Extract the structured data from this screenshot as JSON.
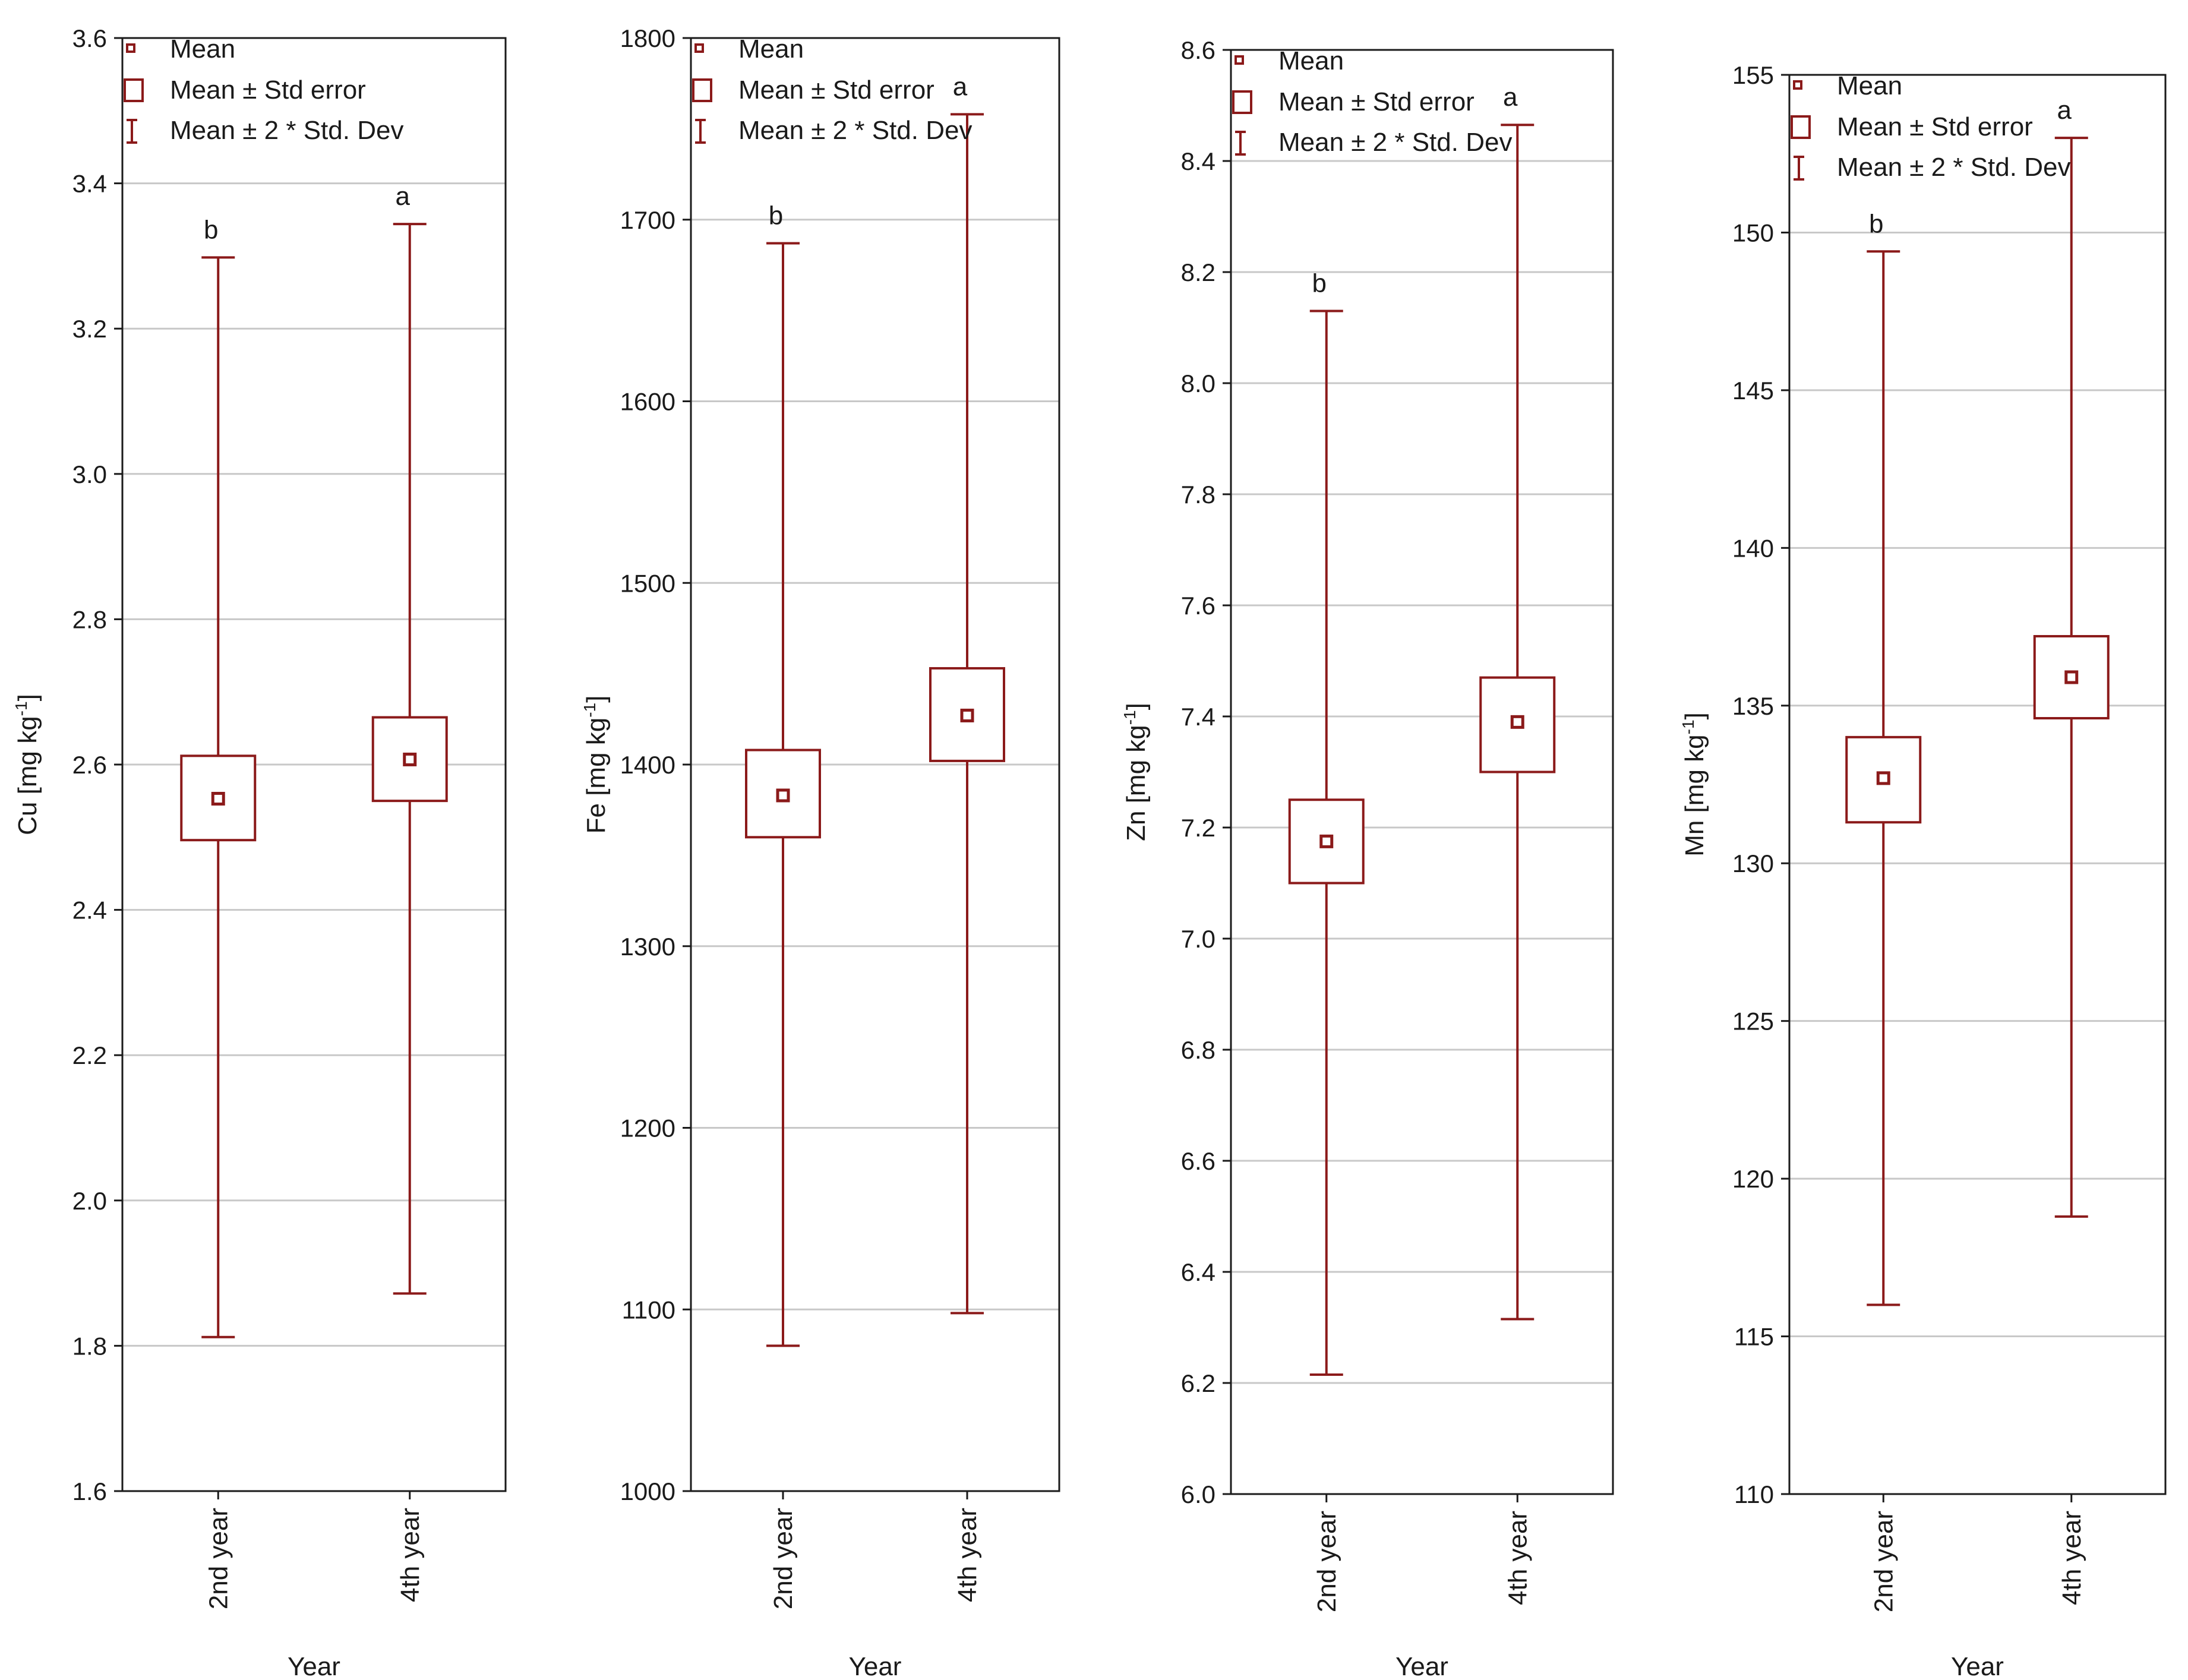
{
  "figure": {
    "accent_color": "#8b1a1a"
  },
  "chart_data": [
    {
      "type": "box",
      "xlabel": "Year",
      "ylabel": "Cu [mg kg-1]",
      "ylabel_main": "Cu [mg kg",
      "ylabel_sup": "-1",
      "ylabel_close": "]",
      "ylim": [
        1.6,
        3.6
      ],
      "yticks": [
        "1.6",
        "1.8",
        "2.0",
        "2.2",
        "2.4",
        "2.6",
        "2.8",
        "3.0",
        "3.2",
        "3.4",
        "3.6"
      ],
      "categories": [
        "2nd year",
        "4th year"
      ],
      "mean": [
        2.553,
        2.607
      ],
      "se_low": [
        2.496,
        2.55
      ],
      "se_high": [
        2.612,
        2.665
      ],
      "sd2_low": [
        1.812,
        1.872
      ],
      "sd2_high": [
        3.298,
        3.344
      ],
      "letters": [
        "b",
        "a"
      ],
      "legend": [
        "Mean",
        "Mean ± Std error",
        "Mean ± 2 * Std. Dev"
      ]
    },
    {
      "type": "box",
      "xlabel": "Year",
      "ylabel": "Fe [mg kg-1]",
      "ylabel_main": "Fe [mg kg",
      "ylabel_sup": "-1",
      "ylabel_close": "]",
      "ylim": [
        1000,
        1800
      ],
      "yticks": [
        "1000",
        "1100",
        "1200",
        "1300",
        "1400",
        "1500",
        "1600",
        "1700",
        "1800"
      ],
      "categories": [
        "2nd year",
        "4th year"
      ],
      "mean": [
        1383,
        1427
      ],
      "se_low": [
        1360,
        1402
      ],
      "se_high": [
        1408,
        1453
      ],
      "sd2_low": [
        1080,
        1098
      ],
      "sd2_high": [
        1687,
        1758
      ],
      "letters": [
        "b",
        "a"
      ],
      "legend": [
        "Mean",
        "Mean ± Std error",
        "Mean ± 2 * Std. Dev"
      ]
    },
    {
      "type": "box",
      "xlabel": "Year",
      "ylabel": "Zn [mg kg-1]",
      "ylabel_main": "Zn [mg kg",
      "ylabel_sup": "-1",
      "ylabel_close": "]",
      "ylim": [
        6.0,
        8.6
      ],
      "yticks": [
        "6.0",
        "6.2",
        "6.4",
        "6.6",
        "6.8",
        "7.0",
        "7.2",
        "7.4",
        "7.6",
        "7.8",
        "8.0",
        "8.2",
        "8.4",
        "8.6"
      ],
      "categories": [
        "2nd year",
        "4th year"
      ],
      "mean": [
        7.175,
        7.39
      ],
      "se_low": [
        7.1,
        7.3
      ],
      "se_high": [
        7.25,
        7.47
      ],
      "sd2_low": [
        6.215,
        6.315
      ],
      "sd2_high": [
        8.13,
        8.465
      ],
      "letters": [
        "b",
        "a"
      ],
      "legend": [
        "Mean",
        "Mean ± Std error",
        "Mean ± 2 * Std. Dev"
      ]
    },
    {
      "type": "box",
      "xlabel": "Year",
      "ylabel": "Mn [mg kg-1]",
      "ylabel_main": "Mn [mg kg",
      "ylabel_sup": "-1",
      "ylabel_close": "]",
      "ylim": [
        110,
        155
      ],
      "yticks": [
        "110",
        "115",
        "120",
        "125",
        "130",
        "135",
        "140",
        "145",
        "150",
        "155"
      ],
      "categories": [
        "2nd year",
        "4th year"
      ],
      "mean": [
        132.7,
        135.9
      ],
      "se_low": [
        131.3,
        134.6
      ],
      "se_high": [
        134.0,
        137.2
      ],
      "sd2_low": [
        116.0,
        118.8
      ],
      "sd2_high": [
        149.4,
        153.0
      ],
      "letters": [
        "b",
        "a"
      ],
      "legend": [
        "Mean",
        "Mean ± Std error",
        "Mean ± 2 * Std. Dev"
      ]
    }
  ]
}
